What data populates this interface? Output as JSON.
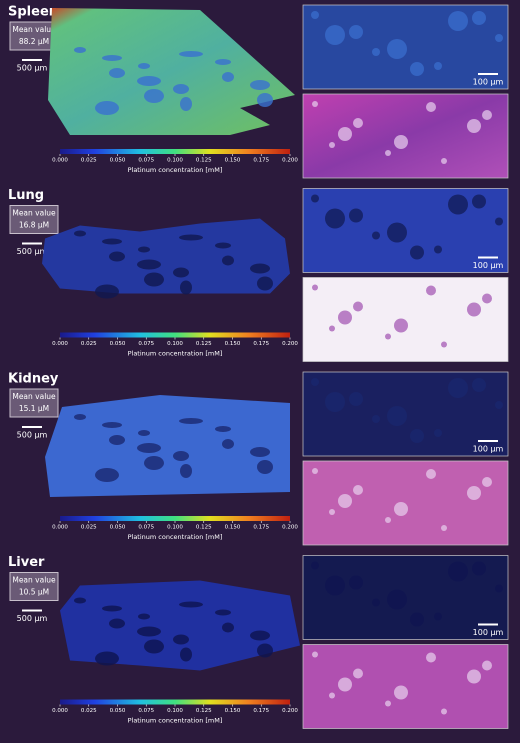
{
  "panels": [
    {
      "organ": "Spleen",
      "mean_label": "Mean value",
      "mean_value": "88.2 μM",
      "scale_bar": "500 μm",
      "zoom_scale_bar": "100 μm",
      "colorbar": {
        "ticks": [
          "0.000",
          "0.025",
          "0.050",
          "0.075",
          "0.100",
          "0.125",
          "0.150",
          "0.175",
          "0.200"
        ],
        "label": "Platinum concentration  [mM]"
      }
    },
    {
      "organ": "Lung",
      "mean_label": "Mean value",
      "mean_value": "16.8 μM",
      "scale_bar": "500 μm",
      "zoom_scale_bar": "100 μm",
      "colorbar": {
        "ticks": [
          "0.000",
          "0.025",
          "0.050",
          "0.075",
          "0.100",
          "0.125",
          "0.150",
          "0.175",
          "0.200"
        ],
        "label": "Platinum concentration  [mM]"
      }
    },
    {
      "organ": "Kidney",
      "mean_label": "Mean value",
      "mean_value": "15.1 μM",
      "scale_bar": "500 μm",
      "zoom_scale_bar": "100 μm",
      "colorbar": {
        "ticks": [
          "0.000",
          "0.025",
          "0.050",
          "0.075",
          "0.100",
          "0.125",
          "0.150",
          "0.175",
          "0.200"
        ],
        "label": "Platinum concentration  [mM]"
      }
    },
    {
      "organ": "Liver",
      "mean_label": "Mean value",
      "mean_value": "10.5 μM",
      "scale_bar": "500 μm",
      "zoom_scale_bar": "100 μm",
      "colorbar": {
        "ticks": [
          "0.000",
          "0.025",
          "0.050",
          "0.075",
          "0.100",
          "0.125",
          "0.150",
          "0.175",
          "0.200"
        ],
        "label": "Platinum concentration  [mM]"
      }
    }
  ]
}
